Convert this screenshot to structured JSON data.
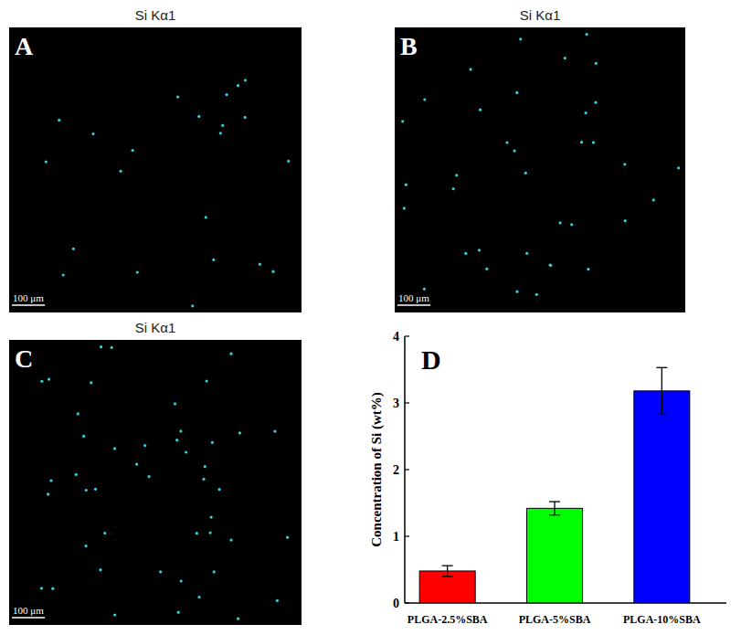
{
  "maps": [
    {
      "label": "A",
      "title": "Si Kα1",
      "scale_bar": "100 μm"
    },
    {
      "label": "B",
      "title": "Si Kα1",
      "scale_bar": "100 μm"
    },
    {
      "label": "C",
      "title": "Si Kα1",
      "scale_bar": "100 μm"
    }
  ],
  "chart_data": {
    "type": "bar",
    "panel_label": "D",
    "y_label": "Concentration of Si (wt%)",
    "categories": [
      "PLGA-2.5%SBA",
      "PLGA-5%SBA",
      "PLGA-10%SBA"
    ],
    "values": [
      0.48,
      1.42,
      3.18
    ],
    "errors": [
      0.08,
      0.1,
      0.35
    ],
    "colors": [
      "#ff0000",
      "#00ff00",
      "#0000ff"
    ],
    "ylim": [
      0,
      4
    ],
    "yticks": [
      0,
      1,
      2,
      3,
      4
    ],
    "grid": false
  }
}
